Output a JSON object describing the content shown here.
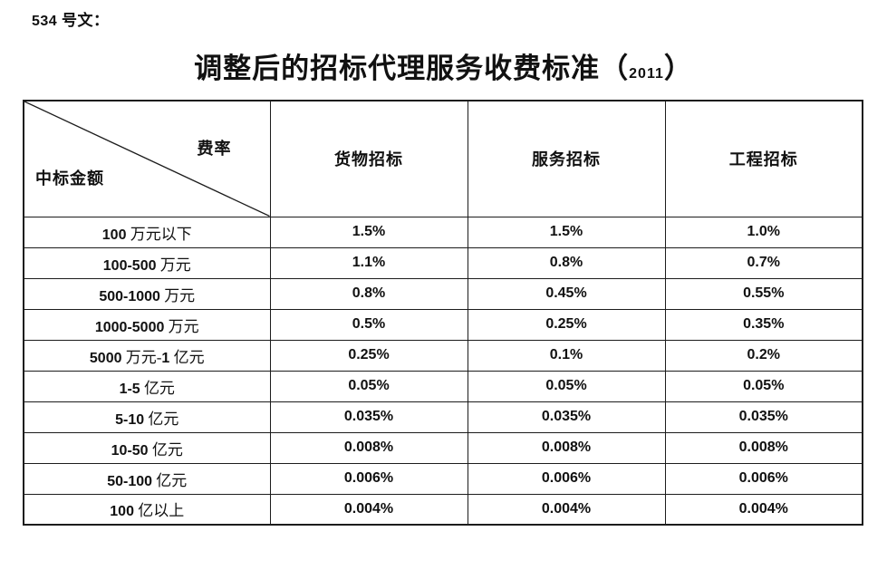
{
  "page": {
    "doc_label": "534 号文：",
    "title": "调整后的招标代理服务收费标准（2011）"
  },
  "table": {
    "corner": {
      "top_right": "费率",
      "bottom_left": "中标金额"
    },
    "columns": [
      "货物招标",
      "服务招标",
      "工程招标"
    ],
    "rows": [
      {
        "label": "100 万元以下",
        "values": [
          "1.5%",
          "1.5%",
          "1.0%"
        ]
      },
      {
        "label": "100-500 万元",
        "values": [
          "1.1%",
          "0.8%",
          "0.7%"
        ]
      },
      {
        "label": "500-1000 万元",
        "values": [
          "0.8%",
          "0.45%",
          "0.55%"
        ]
      },
      {
        "label": "1000-5000 万元",
        "values": [
          "0.5%",
          "0.25%",
          "0.35%"
        ]
      },
      {
        "label": "5000 万元-1 亿元",
        "values": [
          "0.25%",
          "0.1%",
          "0.2%"
        ]
      },
      {
        "label": "1-5 亿元",
        "values": [
          "0.05%",
          "0.05%",
          "0.05%"
        ]
      },
      {
        "label": "5-10 亿元",
        "values": [
          "0.035%",
          "0.035%",
          "0.035%"
        ]
      },
      {
        "label": "10-50 亿元",
        "values": [
          "0.008%",
          "0.008%",
          "0.008%"
        ]
      },
      {
        "label": "50-100 亿元",
        "values": [
          "0.006%",
          "0.006%",
          "0.006%"
        ]
      },
      {
        "label": "100 亿以上",
        "values": [
          "0.004%",
          "0.004%",
          "0.004%"
        ]
      }
    ]
  },
  "colors": {
    "text": "#111111",
    "border": "#1c1c1c",
    "background": "#ffffff"
  }
}
